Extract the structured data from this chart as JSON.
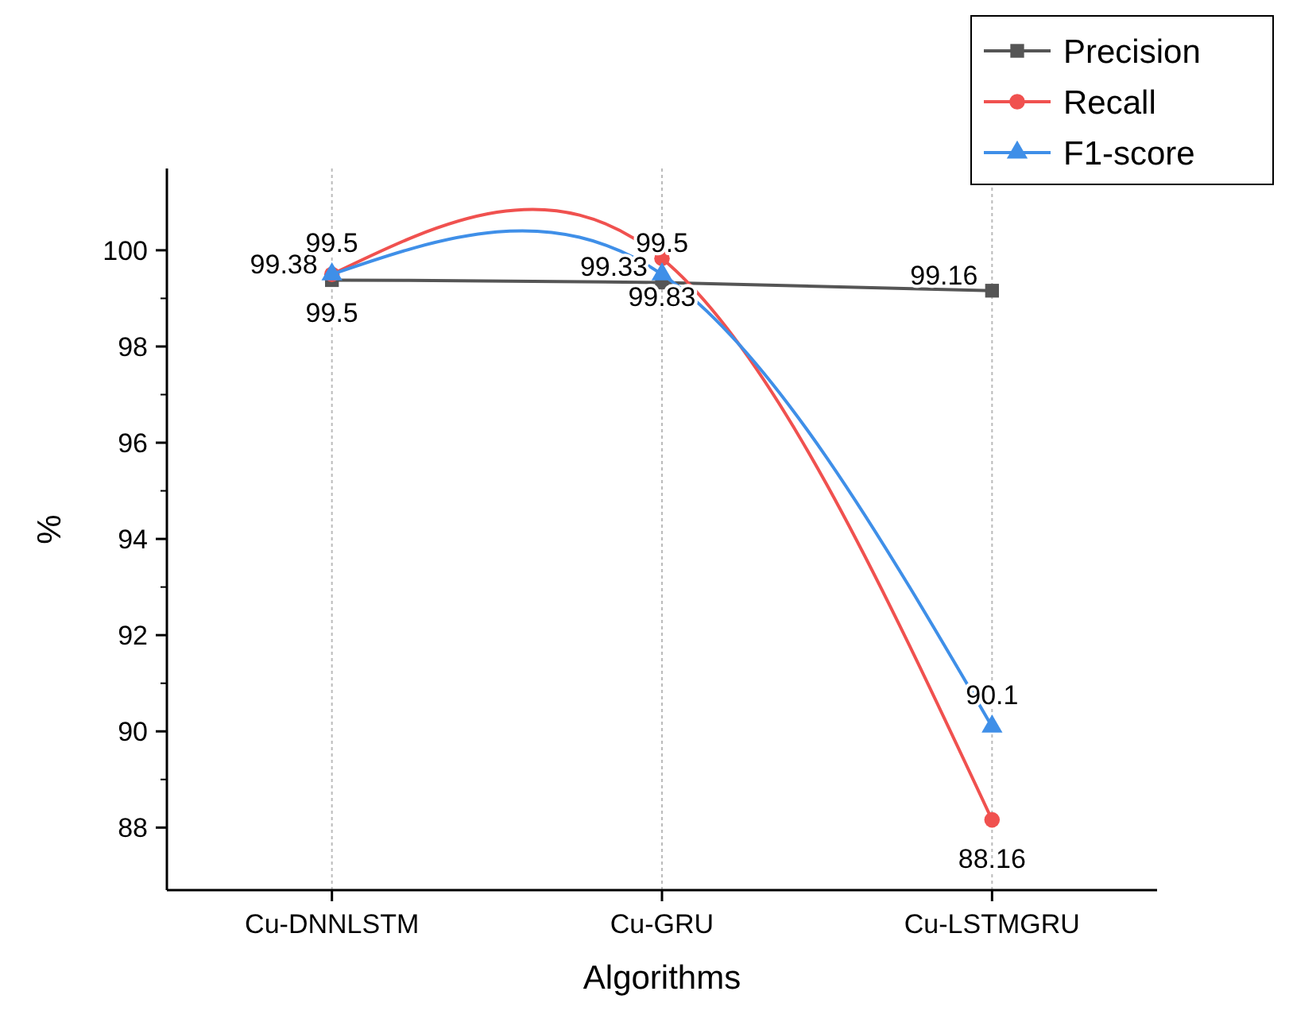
{
  "chart_data": {
    "type": "line",
    "xlabel": "Algorithms",
    "ylabel": "%",
    "categories": [
      "Cu-DNNLSTM",
      "Cu-GRU",
      "Cu-LSTMGRU"
    ],
    "series": [
      {
        "name": "Precision",
        "color": "#555555",
        "marker": "square",
        "values": [
          99.38,
          99.33,
          99.16
        ]
      },
      {
        "name": "Recall",
        "color": "#f0514f",
        "marker": "circle",
        "values": [
          99.5,
          99.83,
          88.16
        ]
      },
      {
        "name": "F1-score",
        "color": "#3f8fe8",
        "marker": "triangle",
        "values": [
          99.5,
          99.5,
          90.1
        ]
      }
    ],
    "ylim": [
      86.7,
      101.7
    ],
    "yticks": [
      88,
      90,
      92,
      94,
      96,
      98,
      100
    ],
    "grid": "x",
    "legend": "top right",
    "data_labels": true,
    "line_style": "solid"
  }
}
